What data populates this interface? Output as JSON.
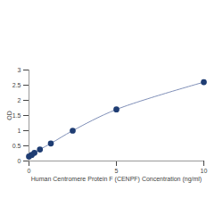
{
  "chart_data": {
    "type": "line",
    "x": [
      0,
      0.156,
      0.312,
      0.625,
      1.25,
      2.5,
      5,
      10
    ],
    "values": [
      0.15,
      0.2,
      0.27,
      0.38,
      0.58,
      1.0,
      1.7,
      2.6
    ],
    "x_label": "Human Centromere Protein F (CENPF) Concentration (ng/ml)",
    "y_label": "OD",
    "xlim": [
      0,
      10
    ],
    "ylim": [
      0,
      3
    ],
    "xticks": [
      0,
      5,
      10
    ],
    "yticks": [
      0,
      0.5,
      1,
      1.5,
      2,
      2.5,
      3
    ],
    "color": "#1f3d73",
    "marker": "circle",
    "line_style": "solid"
  }
}
